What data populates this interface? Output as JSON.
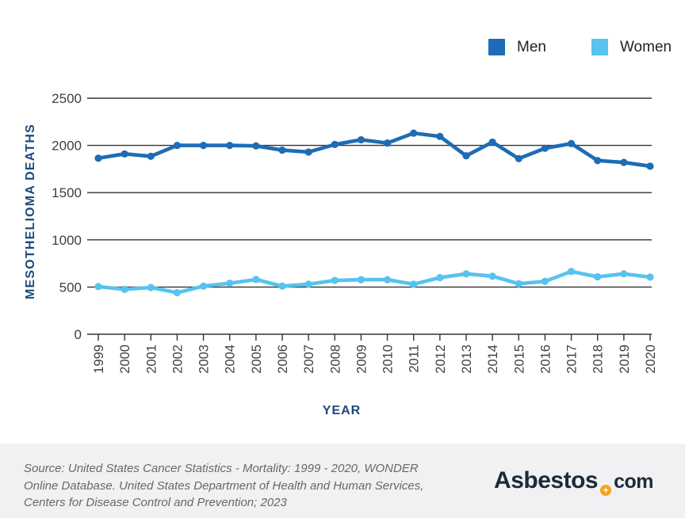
{
  "legend": {
    "items": [
      {
        "label": "Men",
        "color": "#1d6cb5"
      },
      {
        "label": "Women",
        "color": "#57c3ee"
      }
    ]
  },
  "chart": {
    "y_axis_title": "MESOTHELIOMA DEATHS",
    "x_axis_title": "YEAR"
  },
  "chart_data": {
    "type": "line",
    "title": "",
    "x": [
      1999,
      2000,
      2001,
      2002,
      2003,
      2004,
      2005,
      2006,
      2007,
      2008,
      2009,
      2010,
      2011,
      2012,
      2013,
      2014,
      2015,
      2016,
      2017,
      2018,
      2019,
      2020
    ],
    "x_tick_labels": [
      "1999",
      "2000",
      "2001",
      "2002",
      "2003",
      "2004",
      "2005",
      "2006",
      "2007",
      "2008",
      "2009",
      "2010",
      "2011",
      "2012",
      "2013",
      "2014",
      "2015",
      "2016",
      "2017",
      "2018",
      "2019",
      "2020"
    ],
    "series": [
      {
        "name": "Men",
        "color": "#1d6cb5",
        "values": [
          1865,
          1910,
          1885,
          2000,
          2000,
          2000,
          1995,
          1950,
          1930,
          2010,
          2060,
          2025,
          2130,
          2095,
          1890,
          2035,
          1860,
          1970,
          2020,
          1840,
          1820,
          1780
        ]
      },
      {
        "name": "Women",
        "color": "#57c3ee",
        "values": [
          505,
          475,
          495,
          440,
          510,
          540,
          580,
          510,
          530,
          570,
          578,
          578,
          530,
          600,
          640,
          615,
          535,
          560,
          665,
          608,
          640,
          605
        ]
      }
    ],
    "xlabel": "YEAR",
    "ylabel": "MESOTHELIOMA DEATHS",
    "ylim": [
      0,
      2500
    ],
    "yticks": [
      0,
      500,
      1000,
      1500,
      2000,
      2500
    ],
    "ytick_labels": [
      "0",
      "500",
      "1000",
      "1500",
      "2000",
      "2500"
    ],
    "grid": "horizontal",
    "grid_color": "#333333",
    "tick_label_color": "#3f3f3f",
    "legend_position": "top-right"
  },
  "footer": {
    "source_text": "Source: United States Cancer Statistics - Mortality: 1999 - 2020, WONDER\nOnline Database. United States Department of Health and Human Services,\nCenters for Disease Control and Prevention; 2023",
    "logo": {
      "part1": "Asbestos",
      "plus": "+",
      "part2": "com",
      "orange": "#f6a21e",
      "navy": "#1d2b38"
    },
    "background": "#f1f1f4"
  }
}
